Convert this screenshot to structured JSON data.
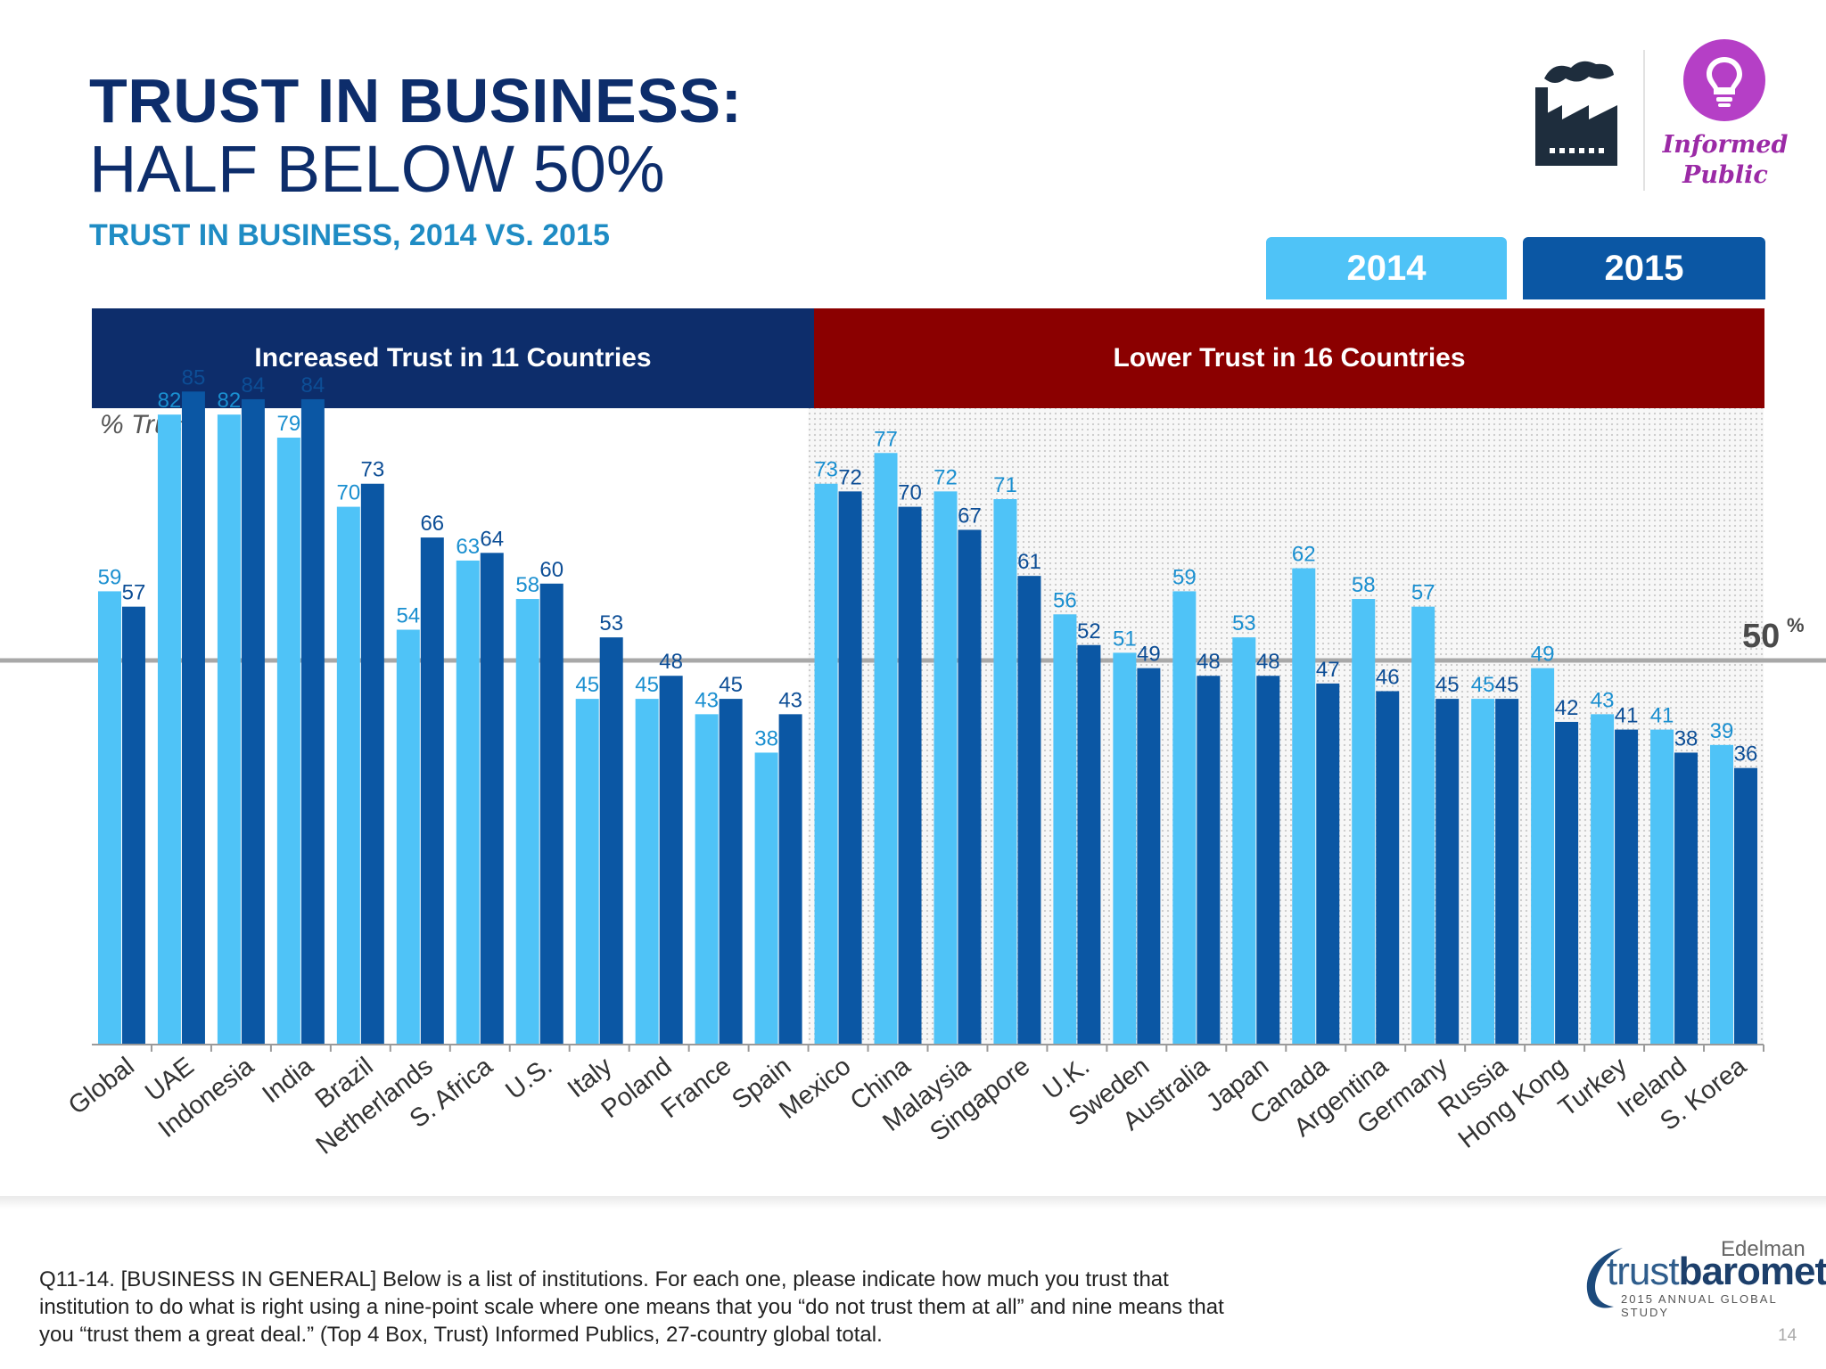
{
  "title_line1": "TRUST IN BUSINESS:",
  "title_line2": "HALF BELOW 50%",
  "subtitle": "TRUST IN BUSINESS, 2014 VS. 2015",
  "badge": {
    "label_line1": "Informed",
    "label_line2": "Public",
    "icons": [
      "factory-icon",
      "lightbulb-icon"
    ]
  },
  "legend": {
    "y2014": "2014",
    "y2015": "2015"
  },
  "banners": {
    "increased": "Increased Trust in 11 Countries",
    "lower": "Lower Trust in 16 Countries"
  },
  "colors": {
    "series_2014": "#4fc3f7",
    "series_2015": "#0b57a4",
    "label_2014": "#1a8fd0",
    "label_2015": "#0d4e96",
    "banner_up": "#0d2d6b",
    "banner_down": "#8b0000"
  },
  "chart_data": {
    "type": "bar",
    "ylabel": "% Trust",
    "ylim": [
      0,
      100
    ],
    "reference_line": {
      "value": 50,
      "label": "50",
      "unit": "%"
    },
    "categories": [
      "Global",
      "UAE",
      "Indonesia",
      "India",
      "Brazil",
      "Netherlands",
      "S. Africa",
      "U.S.",
      "Italy",
      "Poland",
      "France",
      "Spain",
      "Mexico",
      "China",
      "Malaysia",
      "Singapore",
      "U.K.",
      "Sweden",
      "Australia",
      "Japan",
      "Canada",
      "Argentina",
      "Germany",
      "Russia",
      "Hong Kong",
      "Turkey",
      "Ireland",
      "S. Korea"
    ],
    "series": [
      {
        "name": "2014",
        "values": [
          59,
          82,
          82,
          79,
          70,
          54,
          63,
          58,
          45,
          45,
          43,
          38,
          73,
          77,
          72,
          71,
          56,
          51,
          59,
          53,
          62,
          58,
          57,
          45,
          49,
          43,
          41,
          39
        ]
      },
      {
        "name": "2015",
        "values": [
          57,
          85,
          84,
          84,
          73,
          66,
          64,
          60,
          53,
          48,
          45,
          43,
          72,
          70,
          67,
          61,
          52,
          49,
          48,
          48,
          47,
          46,
          45,
          45,
          42,
          41,
          38,
          36
        ]
      }
    ],
    "groups": [
      {
        "label": "Increased Trust in 11 Countries",
        "from": "Global",
        "to": "Spain"
      },
      {
        "label": "Lower Trust in 16 Countries",
        "from": "Mexico",
        "to": "S. Korea",
        "shaded": true
      }
    ],
    "legend_position": "top-right"
  },
  "footnote": "Q11-14. [BUSINESS IN GENERAL] Below is a list of institutions. For each one, please indicate how much you trust that institution to do what is right using a   nine-point scale where one means that you “do not trust them at all” and nine means that you “trust them a great deal.” (Top 4 Box, Trust) Informed Publics, 27-country global total.",
  "logo": {
    "brand": "Edelman",
    "name_light": "trust",
    "name_bold": "barometer",
    "tagline": "2015 ANNUAL GLOBAL STUDY"
  },
  "page_number": "14"
}
